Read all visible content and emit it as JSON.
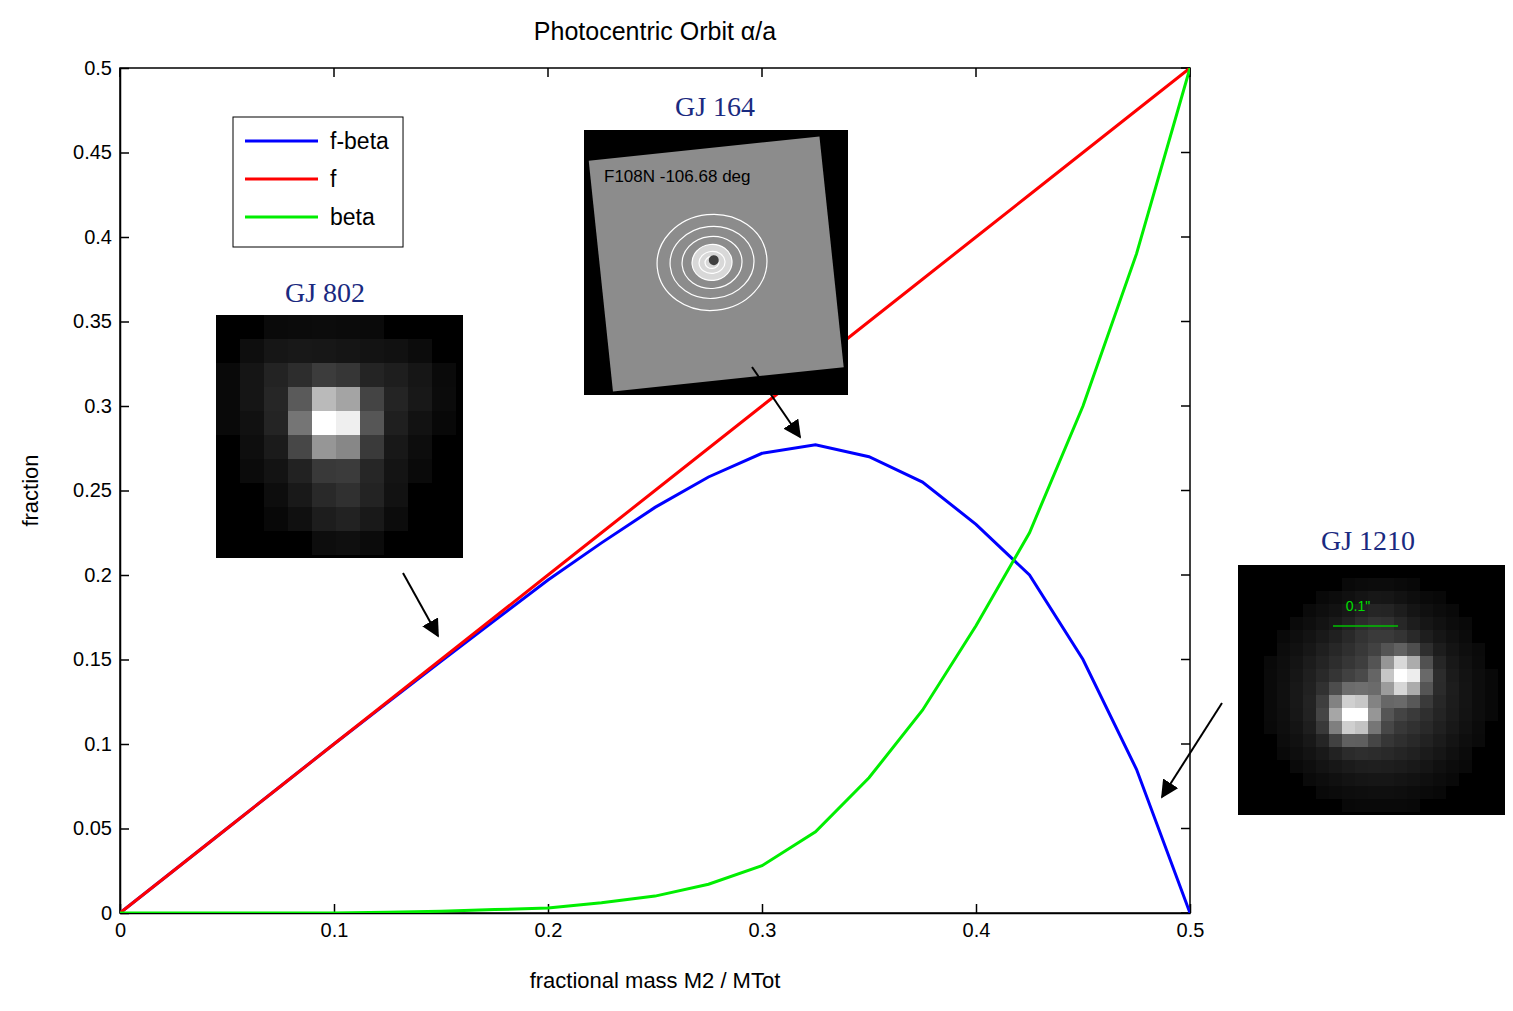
{
  "chart_data": {
    "type": "line",
    "title": "Photocentric Orbit α/a",
    "x_label": "fractional mass M2 / MTot",
    "y_label": "fraction",
    "x": [
      0,
      0.025,
      0.05,
      0.075,
      0.1,
      0.125,
      0.15,
      0.175,
      0.2,
      0.225,
      0.25,
      0.275,
      0.3,
      0.325,
      0.35,
      0.375,
      0.4,
      0.425,
      0.45,
      0.475,
      0.5
    ],
    "series": [
      {
        "name": "f-beta",
        "color": "#0000ff",
        "values": [
          0,
          0.025,
          0.05,
          0.075,
          0.1,
          0.1245,
          0.149,
          0.173,
          0.197,
          0.219,
          0.24,
          0.258,
          0.272,
          0.277,
          0.27,
          0.255,
          0.23,
          0.2,
          0.15,
          0.085,
          0
        ]
      },
      {
        "name": "f",
        "color": "#ff0000",
        "values": [
          0,
          0.025,
          0.05,
          0.075,
          0.1,
          0.125,
          0.15,
          0.175,
          0.2,
          0.225,
          0.25,
          0.275,
          0.3,
          0.325,
          0.35,
          0.375,
          0.4,
          0.425,
          0.45,
          0.475,
          0.5
        ]
      },
      {
        "name": "beta",
        "color": "#00ee00",
        "values": [
          0,
          0,
          0,
          0,
          0,
          0.0005,
          0.001,
          0.002,
          0.003,
          0.006,
          0.01,
          0.017,
          0.028,
          0.048,
          0.08,
          0.12,
          0.17,
          0.225,
          0.3,
          0.39,
          0.5
        ]
      }
    ],
    "xlim": [
      0,
      0.5
    ],
    "ylim": [
      0,
      0.5
    ],
    "xticks": [
      0,
      0.1,
      0.2,
      0.3,
      0.4,
      0.5
    ],
    "yticks": [
      0,
      0.05,
      0.1,
      0.15,
      0.2,
      0.25,
      0.3,
      0.35,
      0.4,
      0.45,
      0.5
    ],
    "grid": false,
    "legend": "upper left",
    "annotations": [
      {
        "text": "GJ 802"
      },
      {
        "text": "GJ 164",
        "inset_text": "F108N  -106.68 deg"
      },
      {
        "text": "GJ 1210",
        "inset_text": "0.1\""
      }
    ]
  }
}
